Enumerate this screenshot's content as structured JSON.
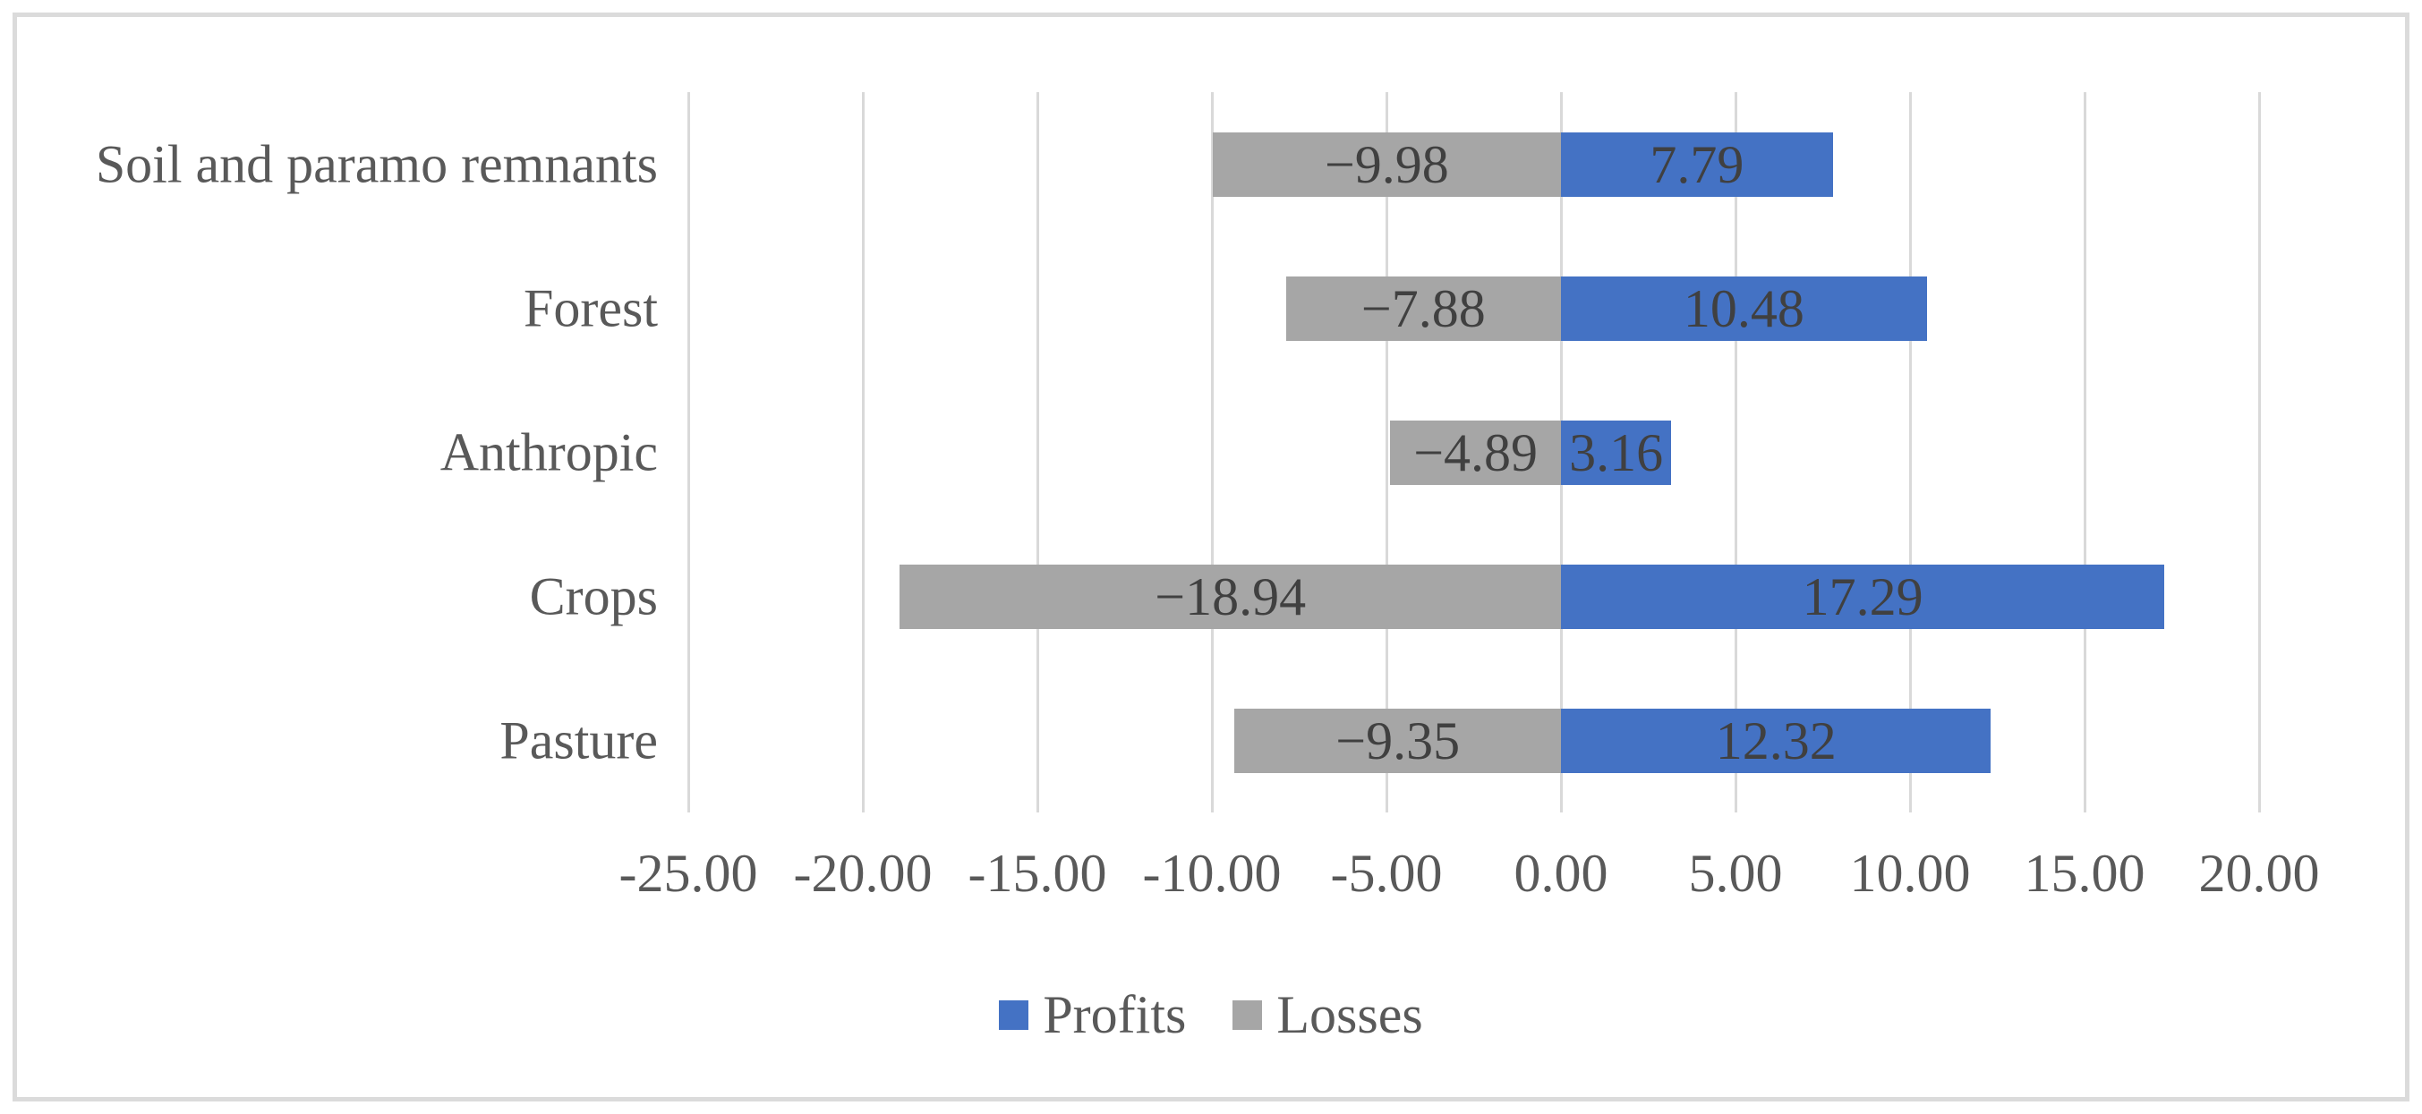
{
  "chart_data": {
    "type": "bar",
    "orientation": "horizontal-diverging",
    "title": "",
    "xlabel": "",
    "ylabel": "",
    "categories": [
      "Soil and paramo remnants",
      "Forest",
      "Anthropic",
      "Crops",
      "Pasture"
    ],
    "series": [
      {
        "name": "Profits",
        "color": "#4472C4",
        "values": [
          7.79,
          10.48,
          3.16,
          17.29,
          12.32
        ],
        "labels": [
          "7.79",
          "10.48",
          "3.16",
          "17.29",
          "12.32"
        ]
      },
      {
        "name": "Losses",
        "color": "#A6A6A6",
        "values": [
          -9.98,
          -7.88,
          -4.89,
          -18.94,
          -9.35
        ],
        "labels": [
          "−9.98",
          "−7.88",
          "−4.89",
          "−18.94",
          "−9.35"
        ]
      }
    ],
    "x_axis": {
      "min": -25,
      "max": 20,
      "ticks": [
        -25,
        -20,
        -15,
        -10,
        -5,
        0,
        5,
        10,
        15,
        20
      ],
      "tick_labels": [
        "-25.00",
        "-20.00",
        "-15.00",
        "-10.00",
        "-5.00",
        "0.00",
        "5.00",
        "10.00",
        "15.00",
        "20.00"
      ]
    },
    "legend": [
      {
        "label": "Profits",
        "color": "#4472C4"
      },
      {
        "label": "Losses",
        "color": "#A6A6A6"
      }
    ],
    "grid": true,
    "gridline_color": "#D9D9D9",
    "axis_label_color": "#595959",
    "data_label_color": "#404040",
    "frame_border_color": "#DBDBDB",
    "background_color": "#FFFFFF"
  }
}
